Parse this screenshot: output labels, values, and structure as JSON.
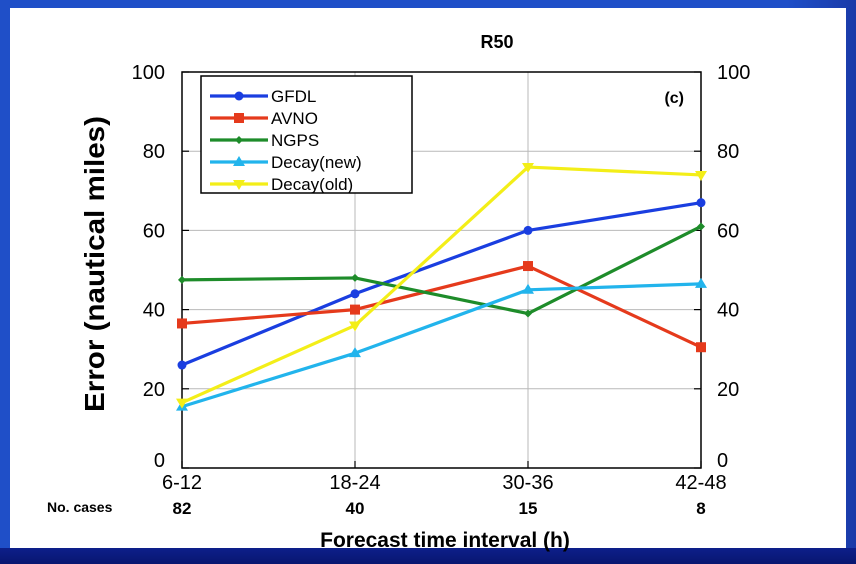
{
  "chart_data": {
    "type": "line",
    "title": "R50",
    "panel_label": "(c)",
    "ylabel": "Error (nautical miles)",
    "xlabel": "Forecast time interval (h)",
    "ylim": [
      0,
      100
    ],
    "yticks": [
      0,
      20,
      40,
      60,
      80,
      100
    ],
    "grid": true,
    "legend_position": "top-left",
    "categories": [
      "6-12",
      "18-24",
      "30-36",
      "42-48"
    ],
    "cases_label": "No. cases",
    "cases": [
      "82",
      "40",
      "15",
      "8"
    ],
    "series": [
      {
        "name": "GFDL",
        "color": "#1a3ee0",
        "marker": "circle",
        "values": [
          26,
          44,
          60,
          67
        ]
      },
      {
        "name": "AVNO",
        "color": "#e53a1c",
        "marker": "square",
        "values": [
          36.5,
          40,
          51,
          30.5
        ]
      },
      {
        "name": "NGPS",
        "color": "#1e8c2a",
        "marker": "diamond",
        "values": [
          47.5,
          48,
          39,
          61
        ]
      },
      {
        "name": "Decay(new)",
        "color": "#22b4ec",
        "marker": "triangle-up",
        "values": [
          15.5,
          29,
          45,
          46.5
        ]
      },
      {
        "name": "Decay(old)",
        "color": "#f3ee18",
        "marker": "triangle-down",
        "values": [
          16.5,
          36,
          76,
          74
        ]
      }
    ]
  }
}
